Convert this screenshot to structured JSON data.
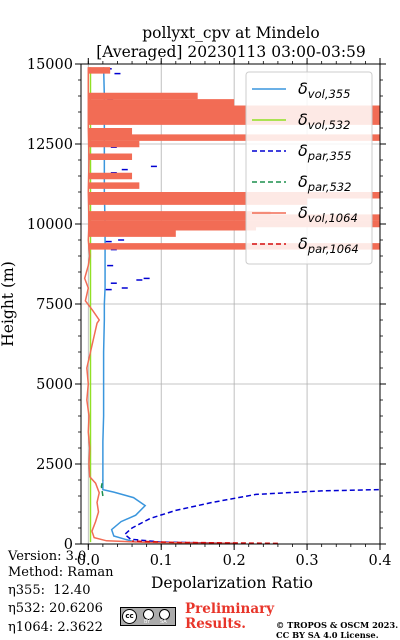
{
  "chart_data": {
    "type": "line",
    "title": "pollyxt_cpv at Mindelo",
    "subtitle": "[Averaged] 20230113 03:00-03:59",
    "xlabel": "Depolarization Ratio",
    "ylabel": "Height (m)",
    "xlim": [
      -0.01,
      0.4
    ],
    "ylim": [
      0,
      15000
    ],
    "xticks": [
      "0.0",
      "0.1",
      "0.2",
      "0.3",
      "0.4"
    ],
    "yticks": [
      "0",
      "2500",
      "5000",
      "7500",
      "10000",
      "12500",
      "15000"
    ],
    "grid": true,
    "legend_position": "upper-right",
    "series": [
      {
        "name": "δ_vol,355",
        "sym": "δ",
        "sub": "vol,355",
        "color": "#3a96dd",
        "dash": "solid",
        "points": [
          [
            0.065,
            60
          ],
          [
            0.05,
            150
          ],
          [
            0.035,
            250
          ],
          [
            0.032,
            450
          ],
          [
            0.045,
            700
          ],
          [
            0.065,
            900
          ],
          [
            0.078,
            1200
          ],
          [
            0.062,
            1450
          ],
          [
            0.035,
            1620
          ],
          [
            0.02,
            1700
          ],
          [
            0.02,
            1900
          ],
          [
            0.02,
            2400
          ],
          [
            0.02,
            3200
          ],
          [
            0.021,
            4000
          ],
          [
            0.021,
            5000
          ],
          [
            0.021,
            6000
          ],
          [
            0.022,
            7000
          ],
          [
            0.022,
            7500
          ],
          [
            0.023,
            8000
          ],
          [
            0.023,
            9000
          ],
          [
            0.023,
            10000
          ],
          [
            0.022,
            11000
          ],
          [
            0.022,
            12000
          ],
          [
            0.022,
            13000
          ],
          [
            0.022,
            14000
          ],
          [
            0.021,
            14900
          ]
        ]
      },
      {
        "name": "δ_vol,532",
        "sym": "δ",
        "sub": "vol,532",
        "color": "#92e025",
        "dash": "solid",
        "points": [
          [
            0.003,
            60
          ],
          [
            0.003,
            5000
          ],
          [
            0.003,
            10000
          ],
          [
            0.003,
            14900
          ]
        ]
      },
      {
        "name": "δ_par,355",
        "sym": "δ",
        "sub": "par,355",
        "color": "#0000d2",
        "dash": "dashed",
        "points": [
          [
            0.2,
            20
          ],
          [
            0.1,
            60
          ],
          [
            0.058,
            150
          ],
          [
            0.05,
            300
          ],
          [
            0.06,
            500
          ],
          [
            0.085,
            800
          ],
          [
            0.12,
            1050
          ],
          [
            0.17,
            1300
          ],
          [
            0.23,
            1550
          ],
          [
            0.32,
            1660
          ],
          [
            0.4,
            1700
          ]
        ],
        "scatter": [
          [
            0.028,
            7950
          ],
          [
            0.05,
            8000
          ],
          [
            0.035,
            8150
          ],
          [
            0.07,
            8250
          ],
          [
            0.08,
            8300
          ],
          [
            0.03,
            8700
          ],
          [
            0.035,
            9200
          ],
          [
            0.05,
            9300
          ],
          [
            0.065,
            9350
          ],
          [
            0.028,
            9450
          ],
          [
            0.045,
            9500
          ],
          [
            0.035,
            11600
          ],
          [
            0.05,
            11700
          ],
          [
            0.09,
            11800
          ],
          [
            0.035,
            12400
          ],
          [
            0.055,
            12500
          ],
          [
            0.03,
            12700
          ],
          [
            0.045,
            12800
          ],
          [
            0.03,
            13900
          ],
          [
            0.04,
            14700
          ],
          [
            0.028,
            14850
          ]
        ]
      },
      {
        "name": "δ_par,532",
        "sym": "δ",
        "sub": "par,532",
        "color": "#1b8f4d",
        "dash": "dashed",
        "points": [
          [
            0.02,
            1500
          ],
          [
            0.018,
            1800
          ],
          [
            0.02,
            2000
          ]
        ]
      },
      {
        "name": "δ_vol,1064",
        "sym": "δ",
        "sub": "vol,1064",
        "color": "#f26c55",
        "dash": "solid",
        "points": [
          [
            0.2,
            20
          ],
          [
            0.08,
            50
          ],
          [
            0.025,
            100
          ],
          [
            0.008,
            200
          ],
          [
            0.005,
            400
          ],
          [
            0.01,
            700
          ],
          [
            0.014,
            1000
          ],
          [
            0.012,
            1300
          ],
          [
            0.015,
            1600
          ],
          [
            0.01,
            1900
          ],
          [
            0.002,
            2100
          ],
          [
            0.001,
            2500
          ],
          [
            0.002,
            3000
          ],
          [
            0.0,
            3500
          ],
          [
            0.001,
            4000
          ],
          [
            -0.002,
            4500
          ],
          [
            0.0,
            5000
          ],
          [
            -0.002,
            5500
          ],
          [
            0.003,
            6000
          ],
          [
            0.008,
            6500
          ],
          [
            0.012,
            6900
          ],
          [
            0.015,
            7000
          ],
          [
            0.006,
            7300
          ],
          [
            -0.004,
            7600
          ],
          [
            0.0,
            8000
          ],
          [
            -0.005,
            8300
          ],
          [
            0.0,
            8700
          ],
          [
            0.002,
            9000
          ],
          [
            0.0,
            9500
          ],
          [
            0.001,
            10000
          ],
          [
            0.0,
            11000
          ],
          [
            0.001,
            12000
          ],
          [
            0.0,
            13000
          ],
          [
            0.0,
            14000
          ],
          [
            0.0,
            14900
          ]
        ],
        "spikes": [
          [
            9300,
            0.4
          ],
          [
            9700,
            0.12
          ],
          [
            9900,
            0.23
          ],
          [
            10000,
            0.4
          ],
          [
            10200,
            0.4
          ],
          [
            10300,
            0.25
          ],
          [
            10700,
            0.3
          ],
          [
            10900,
            0.4
          ],
          [
            11200,
            0.07
          ],
          [
            11500,
            0.06
          ],
          [
            12100,
            0.06
          ],
          [
            12500,
            0.07
          ],
          [
            12700,
            0.4
          ],
          [
            12900,
            0.06
          ],
          [
            13200,
            0.4
          ],
          [
            13400,
            0.4
          ],
          [
            13600,
            0.4
          ],
          [
            13800,
            0.2
          ],
          [
            14000,
            0.15
          ],
          [
            14800,
            0.03
          ]
        ]
      },
      {
        "name": "δ_par,1064",
        "sym": "δ",
        "sub": "par,1064",
        "color": "#d50f0f",
        "dash": "dashed",
        "points": [
          [
            0.26,
            20
          ],
          [
            0.12,
            50
          ],
          [
            0.06,
            90
          ]
        ]
      }
    ]
  },
  "info": {
    "version": "Version: 3.0",
    "method": "Method: Raman",
    "eta355": "η355:  12.40",
    "eta532": "η532: 20.6206",
    "eta1064": "η1064: 2.3622"
  },
  "license": {
    "preliminary_line1": "Preliminary",
    "preliminary_line2": "Results.",
    "copyright_line1": "© TROPOS & OSCM 2023.",
    "copyright_line2": "CC BY SA 4.0 License.",
    "badge_cc": "cc",
    "badge_by": "BY",
    "badge_sa": "SA"
  }
}
